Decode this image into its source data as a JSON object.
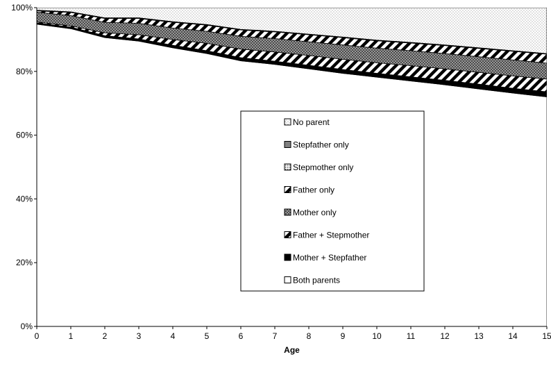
{
  "chart_data": {
    "type": "area",
    "stacked": true,
    "percent": true,
    "xlabel": "Age",
    "ylabel": "",
    "x": [
      0,
      1,
      2,
      3,
      4,
      5,
      6,
      7,
      8,
      9,
      10,
      11,
      12,
      13,
      14,
      15
    ],
    "ylim": [
      0,
      100
    ],
    "yticks": [
      "0%",
      "20%",
      "40%",
      "60%",
      "80%",
      "100%"
    ],
    "legend_position": "center",
    "grid": false,
    "series": [
      {
        "name": "Both parents",
        "color": "#ffffff",
        "pattern": "none",
        "values": [
          94.8,
          93.4,
          90.6,
          89.5,
          87.4,
          85.6,
          83.3,
          82.2,
          80.8,
          79.4,
          78.2,
          77.0,
          75.8,
          74.5,
          73.2,
          72.0
        ]
      },
      {
        "name": "Mother + Stepfather",
        "color": "#000000",
        "pattern": "solid",
        "values": [
          0.4,
          0.5,
          0.6,
          0.7,
          0.8,
          0.9,
          1.0,
          1.0,
          1.1,
          1.2,
          1.2,
          1.3,
          1.4,
          1.5,
          1.5,
          1.6
        ]
      },
      {
        "name": "Father + Stepmother",
        "color": "#000000",
        "pattern": "diagonal",
        "values": [
          0.3,
          0.4,
          0.9,
          1.3,
          1.8,
          2.3,
          2.7,
          2.9,
          3.1,
          3.2,
          3.3,
          3.5,
          3.6,
          3.7,
          3.9,
          4.0
        ]
      },
      {
        "name": "Mother only",
        "color": "#808080",
        "pattern": "crosshatch",
        "values": [
          3.1,
          3.2,
          3.3,
          3.6,
          3.6,
          3.8,
          4.0,
          4.2,
          4.3,
          4.5,
          4.6,
          4.7,
          4.8,
          4.9,
          5.0,
          5.0
        ]
      },
      {
        "name": "Father only",
        "color": "#000000",
        "pattern": "diagonal",
        "values": [
          0.4,
          1.0,
          1.2,
          1.5,
          1.8,
          1.9,
          2.0,
          2.1,
          2.2,
          2.3,
          2.3,
          2.4,
          2.5,
          2.6,
          2.7,
          2.8
        ]
      },
      {
        "name": "Stepmother only",
        "color": "#808080",
        "pattern": "dots",
        "values": [
          0.1,
          0.1,
          0.1,
          0.1,
          0.1,
          0.1,
          0.1,
          0.1,
          0.1,
          0.1,
          0.1,
          0.1,
          0.1,
          0.1,
          0.1,
          0.1
        ]
      },
      {
        "name": "Stepfather only",
        "color": "#808080",
        "pattern": "solid",
        "values": [
          0.1,
          0.1,
          0.1,
          0.1,
          0.1,
          0.1,
          0.1,
          0.1,
          0.1,
          0.1,
          0.1,
          0.1,
          0.1,
          0.1,
          0.1,
          0.1
        ]
      },
      {
        "name": "No parent",
        "color": "#bfbfbf",
        "pattern": "fine-dots",
        "values": [
          0.8,
          1.3,
          3.2,
          3.2,
          4.4,
          5.3,
          6.8,
          7.4,
          8.3,
          9.2,
          10.2,
          10.9,
          11.7,
          12.6,
          13.5,
          14.4
        ]
      }
    ],
    "legend_order": [
      "No parent",
      "Stepfather only",
      "Stepmother only",
      "Father only",
      "Mother only",
      "Father + Stepmother",
      "Mother + Stepfather",
      "Both parents"
    ]
  }
}
